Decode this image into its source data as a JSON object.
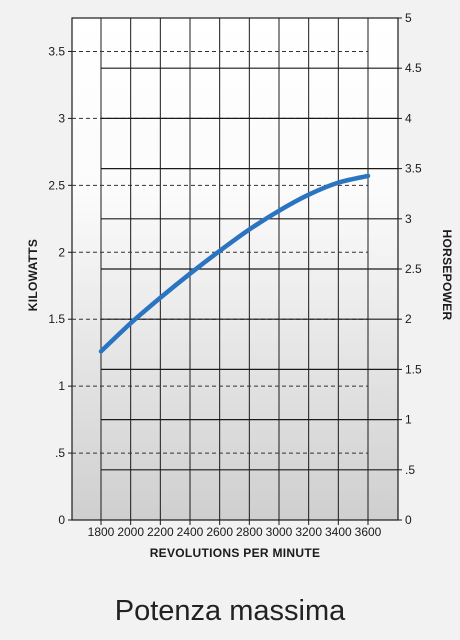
{
  "chart_data": {
    "type": "line",
    "title": "Potenza massima",
    "xlabel": "REVOLUTIONS PER MINUTE",
    "ylabel": "KILOWATTS",
    "y2label": "HORSEPOWER",
    "xlim": [
      1800,
      3600
    ],
    "x_ticks": [
      "1800",
      "2000",
      "2200",
      "2400",
      "2600",
      "2800",
      "3000",
      "3200",
      "3400",
      "3600"
    ],
    "ylim": [
      0,
      3.75
    ],
    "y_ticks": [
      {
        "value": 0,
        "label": "0"
      },
      {
        "value": 0.5,
        "label": ".5"
      },
      {
        "value": 1,
        "label": "1"
      },
      {
        "value": 1.5,
        "label": "1.5"
      },
      {
        "value": 2,
        "label": "2"
      },
      {
        "value": 2.5,
        "label": "2.5"
      },
      {
        "value": 3,
        "label": "3"
      },
      {
        "value": 3.5,
        "label": "3.5"
      }
    ],
    "y2lim": [
      0,
      5
    ],
    "y2_ticks": [
      {
        "value": 0,
        "label": "0"
      },
      {
        "value": 0.5,
        "label": ".5"
      },
      {
        "value": 1,
        "label": "1"
      },
      {
        "value": 1.5,
        "label": "1.5"
      },
      {
        "value": 2,
        "label": "2"
      },
      {
        "value": 2.5,
        "label": "2.5"
      },
      {
        "value": 3,
        "label": "3"
      },
      {
        "value": 3.5,
        "label": "3.5"
      },
      {
        "value": 4,
        "label": "4"
      },
      {
        "value": 4.5,
        "label": "4.5"
      },
      {
        "value": 5,
        "label": "5"
      }
    ],
    "grid": true,
    "series": [
      {
        "color": "#2b74c2",
        "x": [
          1800,
          2000,
          2200,
          2400,
          2600,
          2800,
          3000,
          3200,
          3400,
          3600
        ],
        "y": [
          1.26,
          1.47,
          1.66,
          1.84,
          2.01,
          2.17,
          2.31,
          2.43,
          2.52,
          2.57
        ]
      }
    ]
  }
}
